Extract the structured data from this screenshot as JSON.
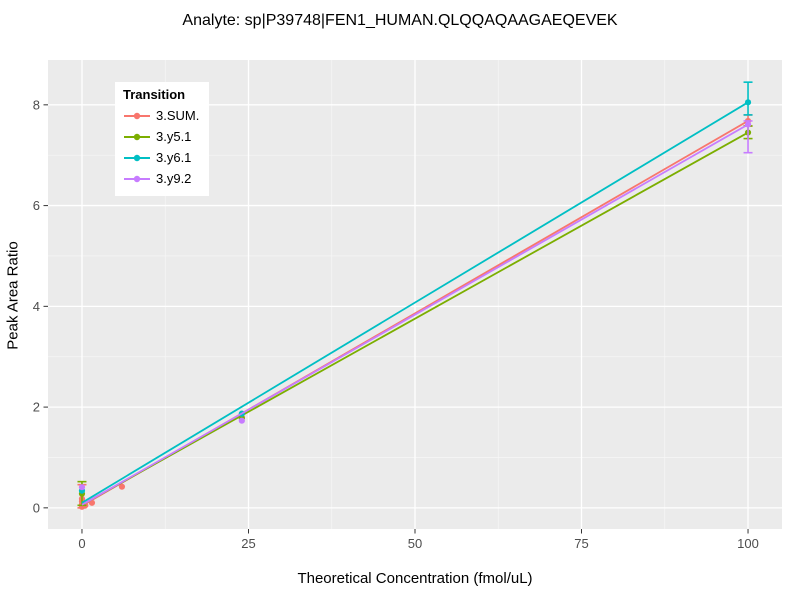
{
  "title": "Analyte: sp|P39748|FEN1_HUMAN.QLQQAQAAGAEQEVEK",
  "chart_data": {
    "type": "line",
    "title": "Analyte: sp|P39748|FEN1_HUMAN.QLQQAQAAGAEQEVEK",
    "xlabel": "Theoretical Concentration (fmol/uL)",
    "ylabel": "Peak Area Ratio",
    "xlim": [
      -5.1,
      105.1
    ],
    "ylim": [
      -0.42,
      8.89
    ],
    "x_ticks": [
      0,
      25,
      50,
      75,
      100
    ],
    "y_ticks": [
      0,
      2,
      4,
      6,
      8
    ],
    "x_minor_ticks": [
      12.5,
      37.5,
      62.5,
      87.5
    ],
    "y_minor_ticks": [
      1,
      3,
      5,
      7
    ],
    "grid": "on",
    "legend_title": "Transition",
    "legend_position": "inside-top-left",
    "panel_bg_color": "#EBEBEB",
    "grid_major_color": "#FFFFFF",
    "grid_minor_color": "#F7F7F7",
    "tick_label_color": "#4D4D4D",
    "axis_tick_color": "#333333",
    "series": [
      {
        "name": "3.SUM.",
        "color": "#F8766D",
        "line": [
          [
            0,
            0.04
          ],
          [
            100,
            7.68
          ]
        ],
        "points": [
          [
            0,
            0.02
          ],
          [
            0,
            0.07
          ],
          [
            0,
            0.13
          ],
          [
            0,
            0.18
          ],
          [
            0.5,
            0.05
          ],
          [
            1.5,
            0.1
          ],
          [
            6,
            0.42
          ],
          [
            24,
            1.8
          ],
          [
            100,
            7.68
          ]
        ],
        "error_bars": [
          {
            "x": 0,
            "low": 0.0,
            "high": 0.46
          },
          {
            "x": 100,
            "low": 7.58,
            "high": 7.8
          }
        ]
      },
      {
        "name": "3.y5.1",
        "color": "#7CAE00",
        "line": [
          [
            0,
            0.06
          ],
          [
            100,
            7.45
          ]
        ],
        "points": [
          [
            0,
            0.28
          ],
          [
            24,
            1.78
          ],
          [
            100,
            7.45
          ]
        ],
        "error_bars": [
          {
            "x": 0,
            "low": 0.05,
            "high": 0.52
          },
          {
            "x": 100,
            "low": 7.33,
            "high": 7.58
          }
        ]
      },
      {
        "name": "3.y6.1",
        "color": "#00BFC4",
        "line": [
          [
            0,
            0.1
          ],
          [
            100,
            8.05
          ]
        ],
        "points": [
          [
            0,
            0.34
          ],
          [
            24,
            1.87
          ],
          [
            100,
            8.05
          ]
        ],
        "error_bars": [
          {
            "x": 100,
            "low": 7.8,
            "high": 8.45
          }
        ]
      },
      {
        "name": "3.y9.2",
        "color": "#C77CFF",
        "line": [
          [
            0,
            0.06
          ],
          [
            100,
            7.61
          ]
        ],
        "points": [
          [
            0,
            0.41
          ],
          [
            24,
            1.73
          ],
          [
            100,
            7.61
          ]
        ],
        "error_bars": [
          {
            "x": 100,
            "low": 7.05,
            "high": 7.68
          }
        ]
      }
    ]
  }
}
